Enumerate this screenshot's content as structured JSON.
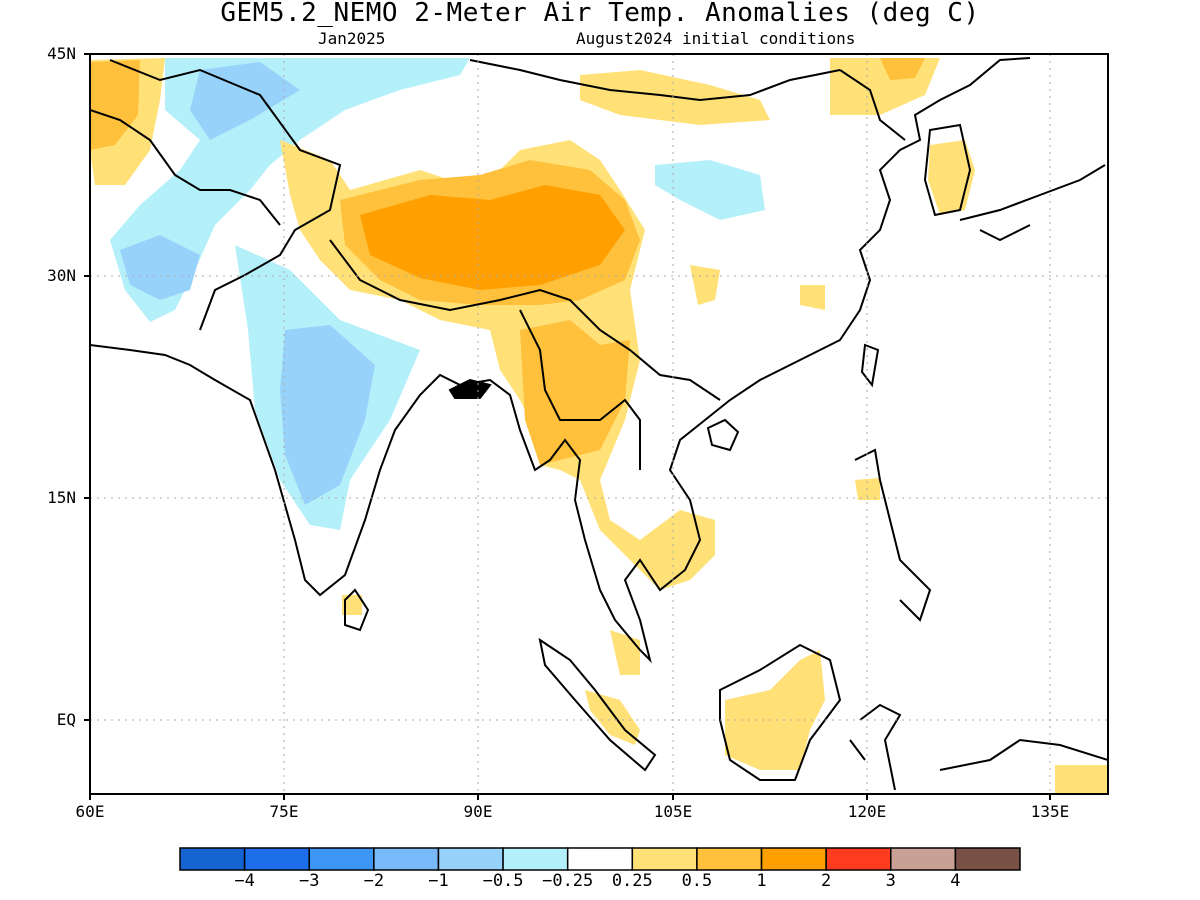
{
  "title": "GEM5.2_NEMO 2-Meter Air Temp. Anomalies (deg C)",
  "subtitle_left": "Jan2025",
  "subtitle_right": "August2024 initial conditions",
  "lat_labels": [
    "45N",
    "30N",
    "15N",
    "EQ"
  ],
  "lon_labels": [
    "60E",
    "75E",
    "90E",
    "105E",
    "120E",
    "135E"
  ],
  "colorbar": {
    "colors": [
      "#1464d2",
      "#1e6eeb",
      "#3c96f5",
      "#78b9fa",
      "#96d2fa",
      "#b4f0fa",
      "#ffffff",
      "#ffe178",
      "#ffc03c",
      "#ffa000",
      "#ff3c1e",
      "#c8a096",
      "#785046"
    ],
    "labels": [
      "−4",
      "−3",
      "−2",
      "−1",
      "−0.5",
      "−0.25",
      "0.25",
      "0.5",
      "1",
      "2",
      "3",
      "4"
    ]
  }
}
